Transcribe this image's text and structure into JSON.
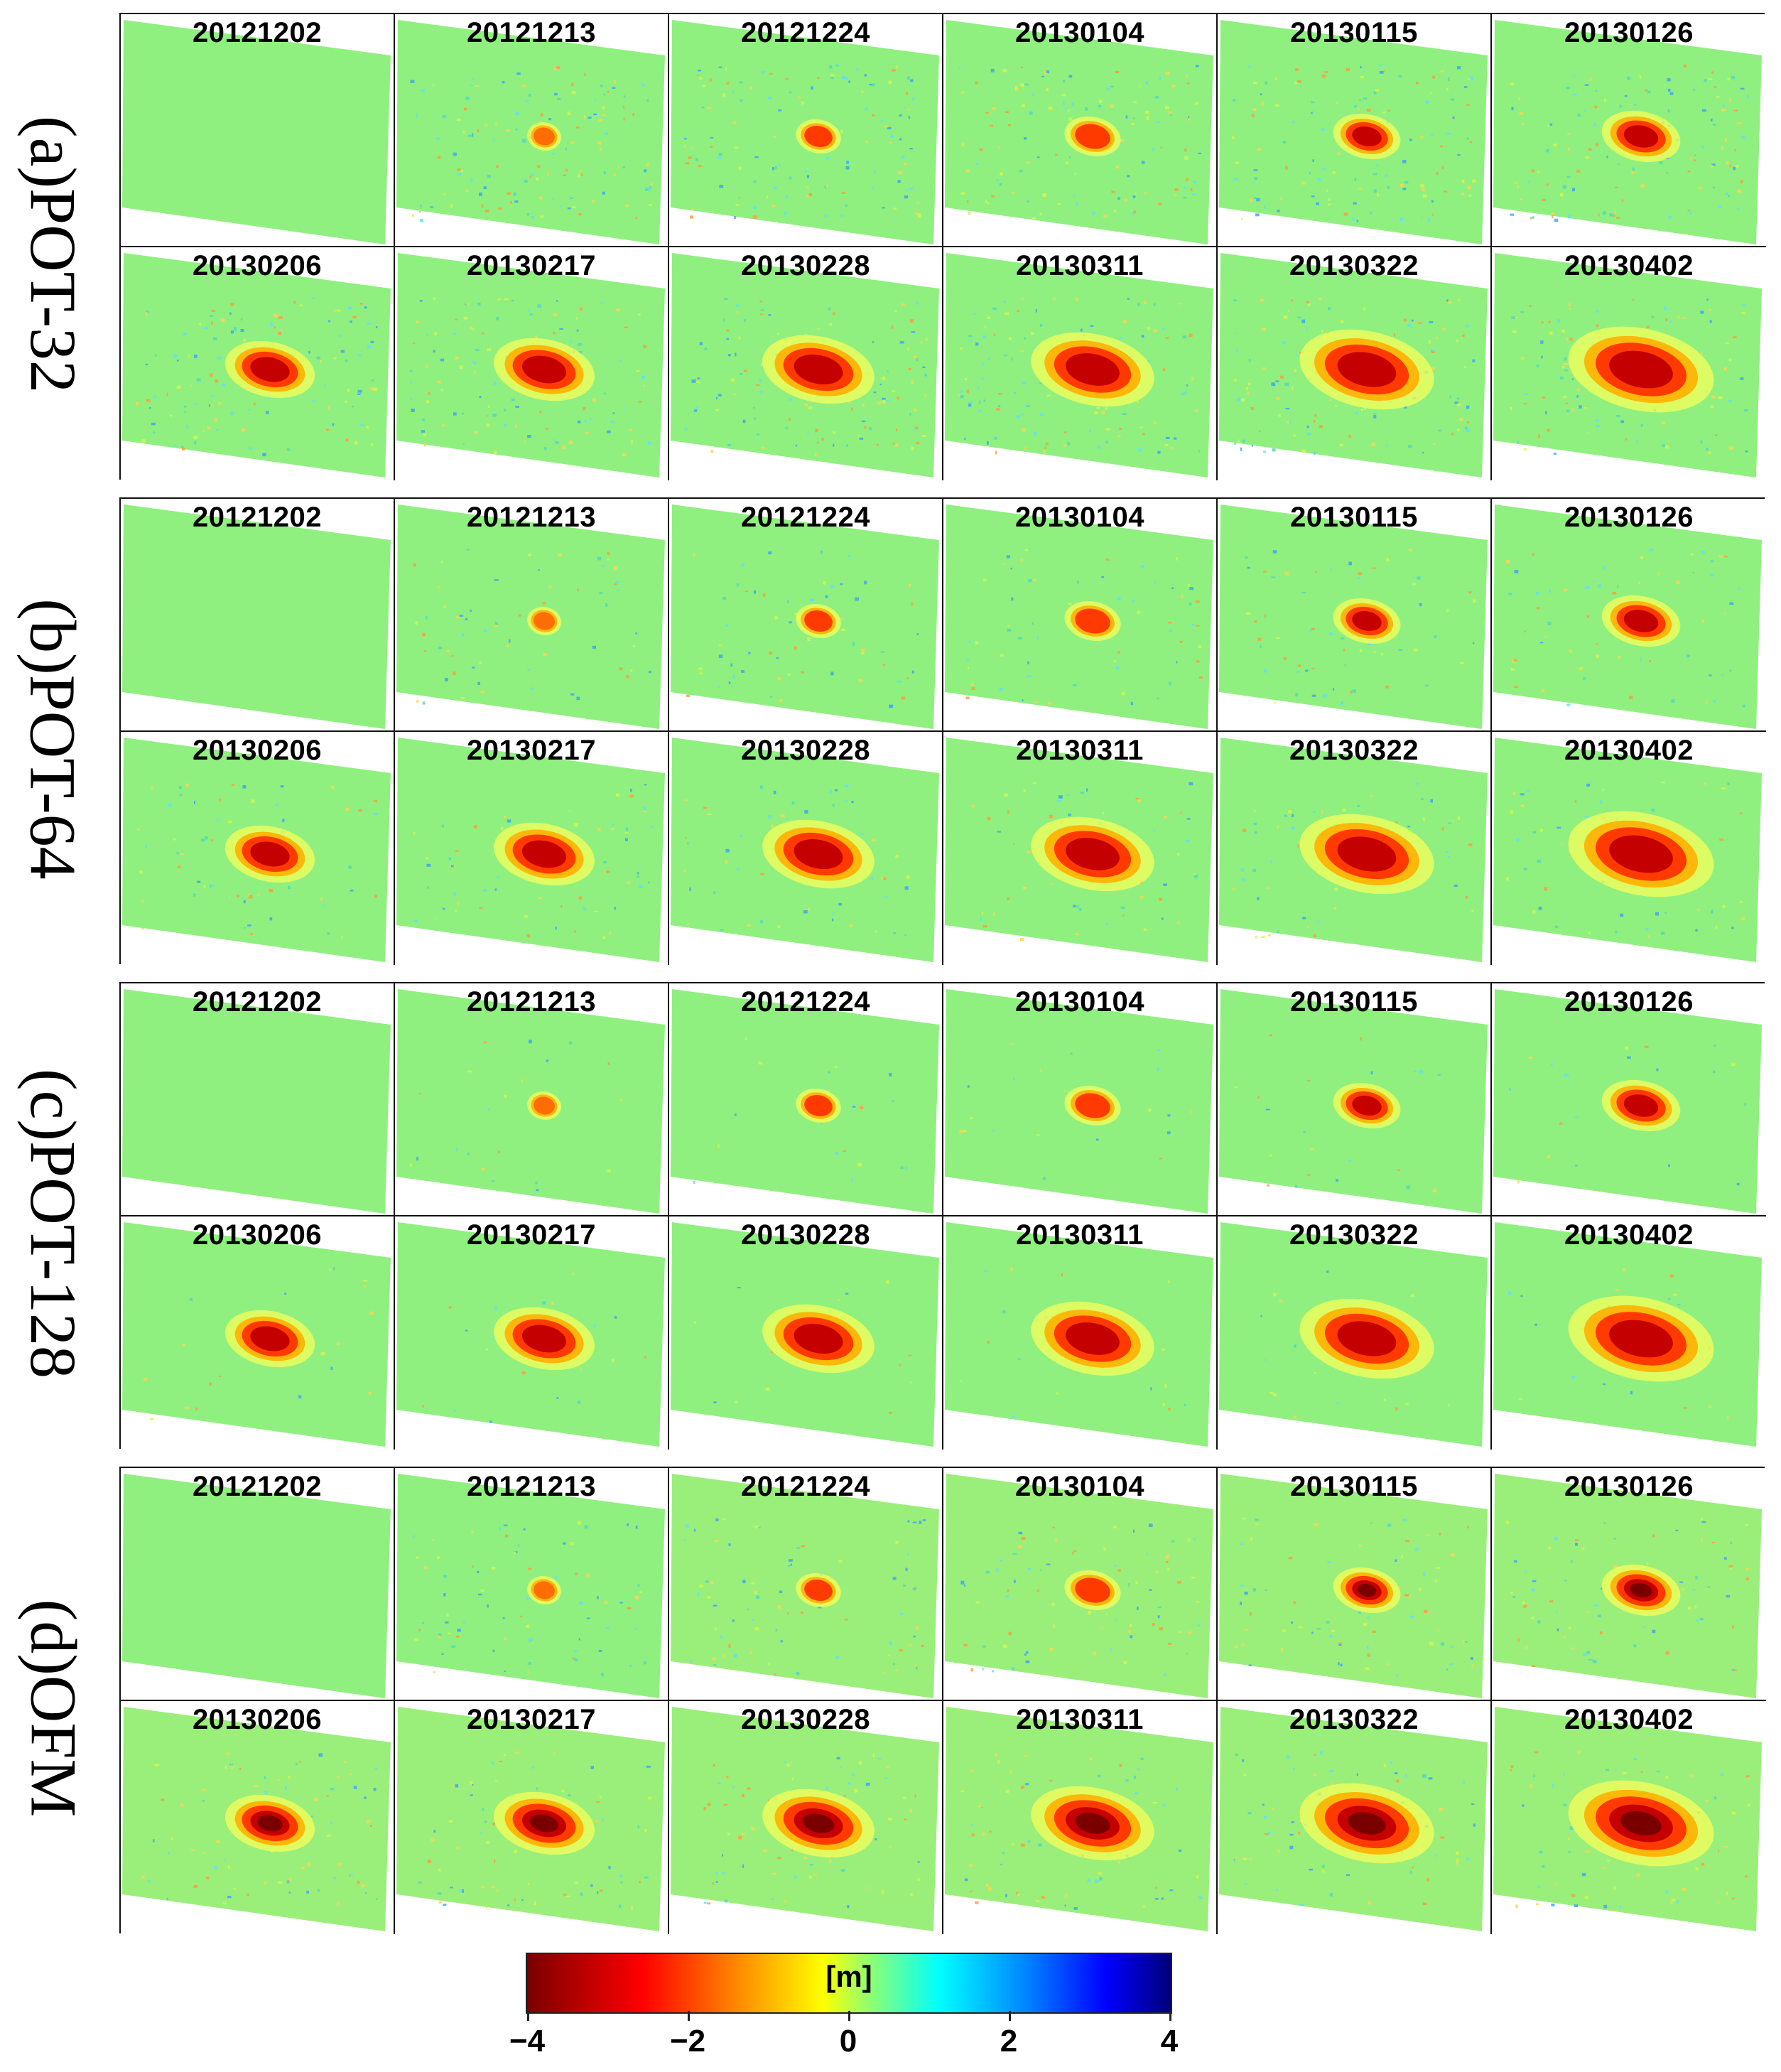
{
  "figure": {
    "dates": [
      "20121202",
      "20121213",
      "20121224",
      "20130104",
      "20130115",
      "20130126",
      "20130206",
      "20130217",
      "20130228",
      "20130311",
      "20130322",
      "20130402"
    ],
    "methods": [
      {
        "label": "(a)POT-32",
        "noise": 0.9
      },
      {
        "label": "(b)POT-64",
        "noise": 0.45
      },
      {
        "label": "(c)POT-128",
        "noise": 0.15
      },
      {
        "label": "(d)OFM",
        "noise": 0.55
      }
    ],
    "colorbar": {
      "unit": "[m]",
      "ticks": [
        "−4",
        "−2",
        "0",
        "2",
        "4"
      ],
      "range": [
        -4,
        4
      ],
      "colors": [
        "#7a0000",
        "#ff0000",
        "#ffff00",
        "#00ffff",
        "#0000ff",
        "#00007a"
      ]
    }
  }
}
